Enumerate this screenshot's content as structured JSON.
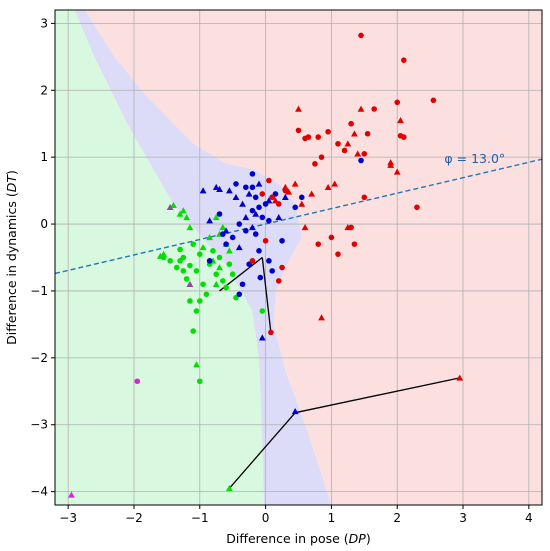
{
  "chart_data": {
    "type": "scatter",
    "xlabel": "Difference in pose (",
    "xlabel_var": "DP",
    "xlabel_end": ")",
    "ylabel": "Difference in dynamics (",
    "ylabel_var": "DT",
    "ylabel_end": ")",
    "xlim": [
      -3.2,
      4.2
    ],
    "ylim": [
      -4.2,
      3.2
    ],
    "xticks": [
      -3,
      -2,
      -1,
      0,
      1,
      2,
      3,
      4
    ],
    "yticks": [
      -4,
      -3,
      -2,
      -1,
      0,
      1,
      2,
      3
    ],
    "grid": true,
    "annotation": {
      "text": "φ = 13.0°",
      "x": 2.93,
      "y": 0.97,
      "line_angle_deg": 13.0,
      "line_intercept": 0.0
    },
    "colors": {
      "green": "#00e000",
      "blue": "#0000cc",
      "red": "#e00000",
      "magenta": "#e020e0",
      "purple": "#8a4fa0",
      "region_green": "#d8f8e0",
      "region_blue": "#dcdcf8",
      "region_red": "#fce0e0",
      "dashed_line": "#1f77b4"
    },
    "regions": {
      "green": [
        [
          -3.2,
          3.2
        ],
        [
          -2.9,
          3.2
        ],
        [
          -2.6,
          2.5
        ],
        [
          -2.1,
          1.5
        ],
        [
          -1.4,
          0.3
        ],
        [
          -0.6,
          -0.6
        ],
        [
          -0.2,
          -1.3
        ],
        [
          -0.1,
          -2.0
        ],
        [
          -0.05,
          -3.2
        ],
        [
          -0.02,
          -4.2
        ],
        [
          -3.2,
          -4.2
        ]
      ],
      "blue": [
        [
          -2.9,
          3.2
        ],
        [
          -2.75,
          3.2
        ],
        [
          -2.3,
          2.5
        ],
        [
          -1.8,
          1.9
        ],
        [
          -1.1,
          1.2
        ],
        [
          -0.6,
          0.9
        ],
        [
          -0.2,
          0.82
        ],
        [
          0.2,
          0.6
        ],
        [
          0.45,
          0.3
        ],
        [
          0.55,
          -0.2
        ],
        [
          0.35,
          -0.55
        ],
        [
          0.15,
          -1.0
        ],
        [
          0.12,
          -1.5
        ],
        [
          0.3,
          -2.2
        ],
        [
          0.6,
          -3.0
        ],
        [
          1.0,
          -4.2
        ],
        [
          -0.02,
          -4.2
        ],
        [
          -0.05,
          -3.2
        ],
        [
          -0.1,
          -2.0
        ],
        [
          -0.2,
          -1.3
        ],
        [
          -0.6,
          -0.6
        ],
        [
          -1.4,
          0.3
        ],
        [
          -2.1,
          1.5
        ],
        [
          -2.6,
          2.5
        ]
      ]
    },
    "series": [
      {
        "name": "green circles",
        "marker": "circle",
        "color": "green",
        "points": [
          [
            -1.55,
            -0.5
          ],
          [
            -1.45,
            -0.55
          ],
          [
            -1.35,
            -0.65
          ],
          [
            -1.3,
            -0.38
          ],
          [
            -1.25,
            -0.5
          ],
          [
            -1.2,
            -0.82
          ],
          [
            -1.15,
            -0.62
          ],
          [
            -1.1,
            -0.3
          ],
          [
            -1.05,
            -0.7
          ],
          [
            -1.0,
            -0.45
          ],
          [
            -0.95,
            -0.9
          ],
          [
            -0.9,
            -1.05
          ],
          [
            -0.85,
            -0.6
          ],
          [
            -0.8,
            -0.4
          ],
          [
            -0.75,
            -0.75
          ],
          [
            -0.7,
            -0.5
          ],
          [
            -0.65,
            -0.85
          ],
          [
            -0.6,
            -0.95
          ],
          [
            -0.55,
            -0.6
          ],
          [
            -0.5,
            -0.75
          ],
          [
            -1.15,
            -1.15
          ],
          [
            -1.05,
            -1.3
          ],
          [
            -1.0,
            -1.15
          ],
          [
            -1.1,
            -1.6
          ],
          [
            -0.45,
            -1.1
          ],
          [
            -1.3,
            -0.55
          ],
          [
            -1.25,
            -0.7
          ],
          [
            -0.05,
            -1.3
          ],
          [
            -1.0,
            -2.35
          ]
        ]
      },
      {
        "name": "green triangles",
        "marker": "triangle",
        "color": "green",
        "points": [
          [
            -1.6,
            -0.48
          ],
          [
            -1.4,
            0.28
          ],
          [
            -1.3,
            0.15
          ],
          [
            -1.2,
            0.1
          ],
          [
            -1.15,
            -0.05
          ],
          [
            -1.25,
            0.2
          ],
          [
            -0.75,
            0.1
          ],
          [
            -0.7,
            -0.15
          ],
          [
            -0.6,
            -0.3
          ],
          [
            -0.55,
            -0.4
          ],
          [
            -0.65,
            -0.05
          ],
          [
            -0.85,
            -0.2
          ],
          [
            -0.95,
            -0.35
          ],
          [
            -0.8,
            -0.55
          ],
          [
            -0.7,
            -0.65
          ],
          [
            -0.75,
            -0.9
          ],
          [
            -1.05,
            -2.1
          ],
          [
            -0.55,
            -3.95
          ],
          [
            -1.55,
            -0.45
          ]
        ]
      },
      {
        "name": "blue circles",
        "marker": "circle",
        "color": "blue",
        "points": [
          [
            -0.85,
            -0.55
          ],
          [
            -0.45,
            0.6
          ],
          [
            -0.3,
            0.55
          ],
          [
            -0.2,
            0.75
          ],
          [
            -0.15,
            0.4
          ],
          [
            -0.1,
            0.25
          ],
          [
            -0.05,
            0.1
          ],
          [
            0.0,
            0.3
          ],
          [
            0.05,
            0.05
          ],
          [
            0.1,
            0.4
          ],
          [
            0.15,
            0.45
          ],
          [
            -0.2,
            0.2
          ],
          [
            -0.3,
            -0.1
          ],
          [
            -0.4,
            0.0
          ],
          [
            -0.5,
            -0.2
          ],
          [
            -0.6,
            -0.3
          ],
          [
            0.05,
            -0.55
          ],
          [
            0.1,
            -0.7
          ],
          [
            -0.25,
            -0.6
          ],
          [
            -0.35,
            -0.9
          ],
          [
            -0.4,
            -1.05
          ],
          [
            0.45,
            0.25
          ],
          [
            0.55,
            0.4
          ],
          [
            1.45,
            0.95
          ],
          [
            -0.1,
            -0.4
          ],
          [
            -0.15,
            -0.15
          ],
          [
            -0.65,
            -0.15
          ],
          [
            -0.7,
            0.15
          ],
          [
            -0.2,
            0.55
          ],
          [
            -0.08,
            -0.8
          ],
          [
            0.25,
            -0.25
          ]
        ]
      },
      {
        "name": "blue triangles",
        "marker": "triangle",
        "color": "blue",
        "points": [
          [
            -0.95,
            0.5
          ],
          [
            -0.75,
            0.55
          ],
          [
            -0.7,
            0.52
          ],
          [
            -0.55,
            0.5
          ],
          [
            -0.45,
            0.4
          ],
          [
            -0.35,
            0.3
          ],
          [
            -0.25,
            0.45
          ],
          [
            -0.15,
            0.15
          ],
          [
            0.2,
            0.1
          ],
          [
            0.3,
            0.4
          ],
          [
            0.05,
            0.35
          ],
          [
            -0.2,
            -0.05
          ],
          [
            -0.3,
            0.1
          ],
          [
            -0.4,
            -0.35
          ],
          [
            -0.05,
            -1.7
          ],
          [
            0.45,
            -2.8
          ],
          [
            -0.6,
            -0.1
          ],
          [
            -0.85,
            0.05
          ],
          [
            -0.1,
            0.6
          ]
        ]
      },
      {
        "name": "red circles",
        "marker": "circle",
        "color": "red",
        "points": [
          [
            1.45,
            2.82
          ],
          [
            2.1,
            2.45
          ],
          [
            2.55,
            1.85
          ],
          [
            2.0,
            1.82
          ],
          [
            1.65,
            1.72
          ],
          [
            1.3,
            1.5
          ],
          [
            1.55,
            1.35
          ],
          [
            0.95,
            1.38
          ],
          [
            2.05,
            1.32
          ],
          [
            2.1,
            1.3
          ],
          [
            0.5,
            1.4
          ],
          [
            0.65,
            1.3
          ],
          [
            0.6,
            1.28
          ],
          [
            0.8,
            1.3
          ],
          [
            1.5,
            1.05
          ],
          [
            1.2,
            1.1
          ],
          [
            0.85,
            1.0
          ],
          [
            0.75,
            0.9
          ],
          [
            1.1,
            1.2
          ],
          [
            0.3,
            0.5
          ],
          [
            0.1,
            0.4
          ],
          [
            0.05,
            0.65
          ],
          [
            0.2,
            0.3
          ],
          [
            1.5,
            0.4
          ],
          [
            2.3,
            0.25
          ],
          [
            1.3,
            -0.05
          ],
          [
            1.35,
            -0.3
          ],
          [
            1.1,
            -0.45
          ],
          [
            0.8,
            -0.3
          ],
          [
            0.25,
            -0.65
          ],
          [
            0.2,
            -0.85
          ],
          [
            0.08,
            -1.62
          ],
          [
            -0.2,
            -0.55
          ],
          [
            -0.05,
            0.45
          ],
          [
            0.0,
            -0.25
          ],
          [
            1.0,
            -0.2
          ]
        ]
      },
      {
        "name": "red triangles",
        "marker": "triangle",
        "color": "red",
        "points": [
          [
            0.5,
            1.72
          ],
          [
            1.45,
            1.72
          ],
          [
            2.05,
            1.55
          ],
          [
            1.35,
            1.35
          ],
          [
            1.25,
            1.2
          ],
          [
            1.4,
            1.05
          ],
          [
            1.9,
            0.92
          ],
          [
            2.0,
            0.78
          ],
          [
            1.9,
            0.88
          ],
          [
            1.05,
            0.6
          ],
          [
            0.95,
            0.55
          ],
          [
            0.7,
            0.45
          ],
          [
            0.55,
            0.3
          ],
          [
            0.35,
            0.48
          ],
          [
            0.45,
            0.6
          ],
          [
            0.3,
            0.55
          ],
          [
            1.25,
            -0.05
          ],
          [
            0.6,
            -0.05
          ],
          [
            0.85,
            -1.4
          ],
          [
            2.95,
            -2.3
          ],
          [
            0.15,
            0.35
          ]
        ]
      },
      {
        "name": "magenta circles",
        "marker": "circle",
        "color": "magenta",
        "points": [
          [
            -1.95,
            -2.35
          ]
        ]
      },
      {
        "name": "magenta triangles",
        "marker": "triangle",
        "color": "magenta",
        "points": [
          [
            -2.95,
            -4.05
          ]
        ]
      },
      {
        "name": "purple triangles",
        "marker": "triangle",
        "color": "purple",
        "points": [
          [
            -1.45,
            0.25
          ],
          [
            -1.15,
            -0.9
          ]
        ]
      }
    ],
    "connectors": [
      [
        [
          -0.05,
          -0.5
        ],
        [
          -0.7,
          -1.0
        ]
      ],
      [
        [
          -0.05,
          -0.5
        ],
        [
          0.08,
          -1.62
        ]
      ],
      [
        [
          -0.55,
          -3.95
        ],
        [
          0.45,
          -2.82
        ]
      ],
      [
        [
          0.45,
          -2.82
        ],
        [
          2.95,
          -2.3
        ]
      ]
    ]
  }
}
